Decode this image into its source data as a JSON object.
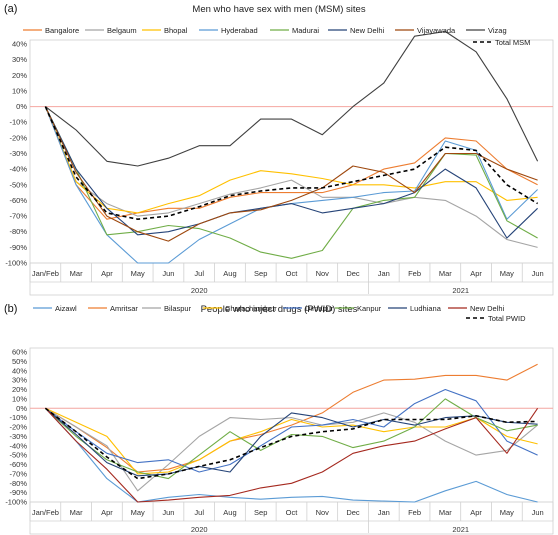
{
  "chart_data": [
    {
      "type": "line",
      "panel_label": "(a)",
      "title": "Men who have sex with men (MSM) sites",
      "xlabel": "",
      "ylabel": "",
      "x": [
        "Jan/Feb",
        "Mar",
        "Apr",
        "May",
        "Jun",
        "Jul",
        "Aug",
        "Sep",
        "Oct",
        "Nov",
        "Dec",
        "Jan",
        "Feb",
        "Mar",
        "Apr",
        "May",
        "Jun"
      ],
      "year_labels": [
        {
          "label": "2020"
        },
        {
          "label": "2021"
        }
      ],
      "ylim": [
        -100,
        40
      ],
      "yticks": [
        "40%",
        "30%",
        "20%",
        "10%",
        "0%",
        "-10%",
        "-20%",
        "-30%",
        "-40%",
        "-50%",
        "-60%",
        "-70%",
        "-80%",
        "-90%",
        "-100%"
      ],
      "series": [
        {
          "name": "Bangalore",
          "color": "#ED7D31",
          "dashed": false,
          "values": [
            0,
            -50,
            -72,
            -68,
            -65,
            -65,
            -58,
            -55,
            -55,
            -55,
            -50,
            -40,
            -36,
            -20,
            -22,
            -40,
            -50
          ]
        },
        {
          "name": "Belgaum",
          "color": "#A5A5A5",
          "dashed": false,
          "values": [
            0,
            -48,
            -62,
            -70,
            -68,
            -62,
            -56,
            -52,
            -47,
            -58,
            -58,
            -62,
            -58,
            -60,
            -70,
            -85,
            -90
          ]
        },
        {
          "name": "Bhopal",
          "color": "#FFC000",
          "dashed": false,
          "values": [
            0,
            -48,
            -65,
            -68,
            -62,
            -57,
            -47,
            -41,
            -43,
            -46,
            -50,
            -50,
            -52,
            -48,
            -48,
            -60,
            -58
          ]
        },
        {
          "name": "Hyderabad",
          "color": "#5B9BD5",
          "dashed": false,
          "values": [
            0,
            -50,
            -82,
            -100,
            -100,
            -85,
            -75,
            -65,
            -62,
            -60,
            -58,
            -55,
            -54,
            -22,
            -28,
            -72,
            -53
          ]
        },
        {
          "name": "Madurai",
          "color": "#70AD47",
          "dashed": false,
          "values": [
            0,
            -40,
            -82,
            -80,
            -76,
            -78,
            -84,
            -93,
            -97,
            -92,
            -65,
            -60,
            -58,
            -30,
            -31,
            -73,
            -84
          ]
        },
        {
          "name": "New Delhi",
          "color": "#264478",
          "dashed": false,
          "values": [
            0,
            -40,
            -65,
            -82,
            -80,
            -75,
            -68,
            -65,
            -62,
            -68,
            -65,
            -62,
            -55,
            -40,
            -52,
            -84,
            -65
          ]
        },
        {
          "name": "Vijayawada",
          "color": "#9E480E",
          "dashed": false,
          "values": [
            0,
            -42,
            -70,
            -80,
            -86,
            -75,
            -68,
            -66,
            -60,
            -52,
            -38,
            -42,
            -55,
            -30,
            -30,
            -40,
            -47
          ]
        },
        {
          "name": "Vizag",
          "color": "#404040",
          "dashed": false,
          "values": [
            0,
            -15,
            -35,
            -38,
            -33,
            -25,
            -25,
            -8,
            -8,
            -18,
            0,
            15,
            45,
            48,
            35,
            5,
            -35
          ]
        },
        {
          "name": "Total MSM",
          "color": "#000000",
          "dashed": true,
          "values": [
            0,
            -45,
            -68,
            -72,
            -70,
            -64,
            -57,
            -54,
            -52,
            -52,
            -48,
            -44,
            -40,
            -26,
            -28,
            -50,
            -62
          ]
        }
      ]
    },
    {
      "type": "line",
      "panel_label": "(b)",
      "title": "People who inject drugs (PWID) sites",
      "xlabel": "",
      "ylabel": "",
      "x": [
        "Jan/Feb",
        "Mar",
        "Apr",
        "May",
        "Jun",
        "Jul",
        "Aug",
        "Sep",
        "Oct",
        "Nov",
        "Dec",
        "Jan",
        "Feb",
        "Mar",
        "Apr",
        "May",
        "Jun"
      ],
      "year_labels": [
        {
          "label": "2020"
        },
        {
          "label": "2021"
        }
      ],
      "ylim": [
        -100,
        60
      ],
      "yticks": [
        "60%",
        "50%",
        "40%",
        "30%",
        "20%",
        "10%",
        "0%",
        "-10%",
        "-20%",
        "-30%",
        "-40%",
        "-50%",
        "-60%",
        "-70%",
        "-80%",
        "-90%",
        "-100%"
      ],
      "series": [
        {
          "name": "Aizawl",
          "color": "#5B9BD5",
          "dashed": false,
          "values": [
            0,
            -35,
            -75,
            -100,
            -95,
            -92,
            -95,
            -97,
            -95,
            -94,
            -98,
            -99,
            -100,
            -88,
            -78,
            -92,
            -100
          ]
        },
        {
          "name": "Amritsar",
          "color": "#ED7D31",
          "dashed": false,
          "values": [
            0,
            -20,
            -42,
            -68,
            -65,
            -55,
            -35,
            -28,
            -18,
            -5,
            17,
            30,
            31,
            35,
            35,
            30,
            47
          ]
        },
        {
          "name": "Bilaspur",
          "color": "#A5A5A5",
          "dashed": false,
          "values": [
            0,
            -20,
            -40,
            -88,
            -60,
            -30,
            -10,
            -12,
            -10,
            -18,
            -15,
            -5,
            -15,
            -35,
            -50,
            -45,
            -18
          ]
        },
        {
          "name": "Churachandpur",
          "color": "#FFC000",
          "dashed": false,
          "values": [
            0,
            -15,
            -30,
            -70,
            -68,
            -55,
            -35,
            -25,
            -12,
            -20,
            -18,
            -25,
            -20,
            -20,
            -10,
            -30,
            -38
          ]
        },
        {
          "name": "Dimapur",
          "color": "#4472C4",
          "dashed": false,
          "values": [
            0,
            -25,
            -48,
            -58,
            -55,
            -68,
            -60,
            -40,
            -20,
            -18,
            -12,
            -20,
            5,
            20,
            8,
            -35,
            -50
          ]
        },
        {
          "name": "Kanpur",
          "color": "#70AD47",
          "dashed": false,
          "values": [
            0,
            -30,
            -55,
            -68,
            -75,
            -50,
            -25,
            -45,
            -28,
            -30,
            -42,
            -35,
            -20,
            10,
            -10,
            -24,
            -18
          ]
        },
        {
          "name": "Ludhiana",
          "color": "#264478",
          "dashed": false,
          "values": [
            0,
            -28,
            -58,
            -72,
            -70,
            -62,
            -68,
            -30,
            -5,
            -10,
            -20,
            -12,
            -18,
            -10,
            -8,
            -15,
            -17
          ]
        },
        {
          "name": "New Delhi",
          "color": "#A5291F",
          "dashed": false,
          "values": [
            0,
            -35,
            -65,
            -100,
            -98,
            -95,
            -93,
            -85,
            -80,
            -68,
            -48,
            -40,
            -35,
            -22,
            -10,
            -48,
            0
          ]
        },
        {
          "name": "Total PWID",
          "color": "#000000",
          "dashed": true,
          "values": [
            0,
            -25,
            -52,
            -75,
            -70,
            -62,
            -55,
            -42,
            -30,
            -25,
            -22,
            -12,
            -12,
            -12,
            -8,
            -15,
            -14
          ]
        }
      ]
    }
  ]
}
